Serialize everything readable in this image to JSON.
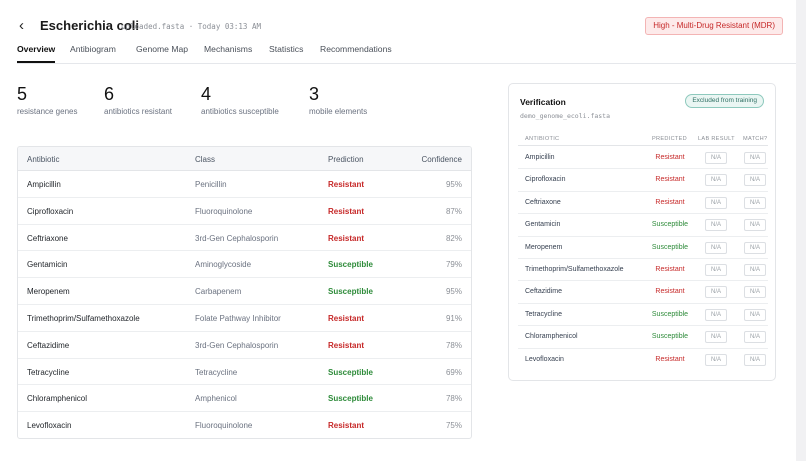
{
  "header": {
    "title": "Escherichia coli",
    "subtitle": "uploaded.fasta · Today 03:13 AM",
    "risk_badge": "High - Multi-Drug Resistant (MDR)"
  },
  "tabs": [
    "Overview",
    "Antibiogram",
    "Genome Map",
    "Mechanisms",
    "Statistics",
    "Recommendations"
  ],
  "stats": [
    {
      "value": "5",
      "label": "resistance genes"
    },
    {
      "value": "6",
      "label": "antibiotics resistant"
    },
    {
      "value": "4",
      "label": "antibiotics susceptible"
    },
    {
      "value": "3",
      "label": "mobile elements"
    }
  ],
  "table": {
    "headers": {
      "antibiotic": "Antibiotic",
      "class": "Class",
      "prediction": "Prediction",
      "confidence": "Confidence"
    },
    "rows": [
      {
        "antibiotic": "Ampicillin",
        "class": "Penicillin",
        "prediction": "Resistant",
        "confidence": "95%"
      },
      {
        "antibiotic": "Ciprofloxacin",
        "class": "Fluoroquinolone",
        "prediction": "Resistant",
        "confidence": "87%"
      },
      {
        "antibiotic": "Ceftriaxone",
        "class": "3rd-Gen Cephalosporin",
        "prediction": "Resistant",
        "confidence": "82%"
      },
      {
        "antibiotic": "Gentamicin",
        "class": "Aminoglycoside",
        "prediction": "Susceptible",
        "confidence": "79%"
      },
      {
        "antibiotic": "Meropenem",
        "class": "Carbapenem",
        "prediction": "Susceptible",
        "confidence": "95%"
      },
      {
        "antibiotic": "Trimethoprim/Sulfamethoxazole",
        "class": "Folate Pathway Inhibitor",
        "prediction": "Resistant",
        "confidence": "91%"
      },
      {
        "antibiotic": "Ceftazidime",
        "class": "3rd-Gen Cephalosporin",
        "prediction": "Resistant",
        "confidence": "78%"
      },
      {
        "antibiotic": "Tetracycline",
        "class": "Tetracycline",
        "prediction": "Susceptible",
        "confidence": "69%"
      },
      {
        "antibiotic": "Chloramphenicol",
        "class": "Amphenicol",
        "prediction": "Susceptible",
        "confidence": "78%"
      },
      {
        "antibiotic": "Levofloxacin",
        "class": "Fluoroquinolone",
        "prediction": "Resistant",
        "confidence": "75%"
      }
    ]
  },
  "verification": {
    "title": "Verification",
    "file": "demo_genome_ecoli.fasta",
    "badge": "Excluded from training",
    "headers": {
      "antibiotic": "ANTIBIOTIC",
      "predicted": "PREDICTED",
      "lab_result": "LAB RESULT",
      "match": "MATCH?"
    },
    "rows": [
      {
        "antibiotic": "Ampicillin",
        "predicted": "Resistant",
        "lab_result": "N/A",
        "match": "N/A"
      },
      {
        "antibiotic": "Ciprofloxacin",
        "predicted": "Resistant",
        "lab_result": "N/A",
        "match": "N/A"
      },
      {
        "antibiotic": "Ceftriaxone",
        "predicted": "Resistant",
        "lab_result": "N/A",
        "match": "N/A"
      },
      {
        "antibiotic": "Gentamicin",
        "predicted": "Susceptible",
        "lab_result": "N/A",
        "match": "N/A"
      },
      {
        "antibiotic": "Meropenem",
        "predicted": "Susceptible",
        "lab_result": "N/A",
        "match": "N/A"
      },
      {
        "antibiotic": "Trimethoprim/Sulfamethoxazole",
        "predicted": "Resistant",
        "lab_result": "N/A",
        "match": "N/A"
      },
      {
        "antibiotic": "Ceftazidime",
        "predicted": "Resistant",
        "lab_result": "N/A",
        "match": "N/A"
      },
      {
        "antibiotic": "Tetracycline",
        "predicted": "Susceptible",
        "lab_result": "N/A",
        "match": "N/A"
      },
      {
        "antibiotic": "Chloramphenicol",
        "predicted": "Susceptible",
        "lab_result": "N/A",
        "match": "N/A"
      },
      {
        "antibiotic": "Levofloxacin",
        "predicted": "Resistant",
        "lab_result": "N/A",
        "match": "N/A"
      }
    ]
  },
  "colors": {
    "resistant": "#c62828",
    "susceptible": "#2e8b3a",
    "risk_badge_bg": "#fdeaea",
    "verify_badge": "#2f6f63"
  },
  "icons": {
    "back": "chevron-left-icon"
  }
}
